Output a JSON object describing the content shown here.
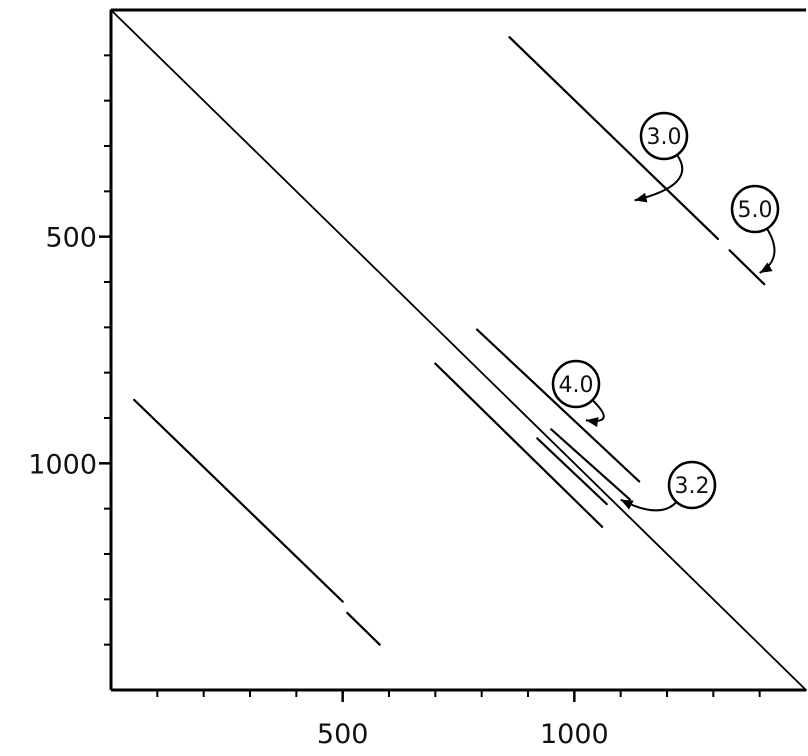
{
  "chart_data": {
    "type": "line",
    "title": "",
    "xlabel": "",
    "ylabel": "",
    "xlim": [
      0,
      1500
    ],
    "ylim": [
      0,
      1500
    ],
    "y_inverted": true,
    "grid": false,
    "x_ticks": [
      {
        "value": 500,
        "label": "500"
      },
      {
        "value": 1000,
        "label": "1000"
      }
    ],
    "y_ticks": [
      {
        "value": 500,
        "label": "500"
      },
      {
        "value": 1000,
        "label": "1000"
      }
    ],
    "x_minor_ticks": [
      100,
      200,
      300,
      400,
      600,
      700,
      800,
      900,
      1100,
      1200,
      1300,
      1400
    ],
    "y_minor_ticks": [
      100,
      200,
      300,
      400,
      600,
      700,
      800,
      900,
      1100,
      1200,
      1300,
      1400
    ],
    "series": [
      {
        "segments": [
          [
            [
              0,
              0
            ],
            [
              1500,
              1500
            ]
          ]
        ]
      },
      {
        "segments": [
          [
            [
              860,
              60
            ],
            [
              1310,
              505
            ]
          ],
          [
            [
              1335,
              530
            ],
            [
              1410,
              605
            ]
          ]
        ]
      },
      {
        "segments": [
          [
            [
              790,
              705
            ],
            [
              1140,
              1040
            ]
          ]
        ]
      },
      {
        "segments": [
          [
            [
              950,
              925
            ],
            [
              1120,
              1080
            ]
          ]
        ]
      },
      {
        "segments": [
          [
            [
              920,
              945
            ],
            [
              1070,
              1090
            ]
          ]
        ]
      },
      {
        "segments": [
          [
            [
              700,
              780
            ],
            [
              1060,
              1140
            ]
          ]
        ]
      },
      {
        "segments": [
          [
            [
              50,
              860
            ],
            [
              500,
              1305
            ]
          ],
          [
            [
              510,
              1330
            ],
            [
              580,
              1400
            ]
          ]
        ]
      }
    ],
    "annotations": [
      {
        "text": "3.0",
        "points_to": [
          1130,
          420
        ]
      },
      {
        "text": "5.0",
        "points_to": [
          1400,
          580
        ]
      },
      {
        "text": "4.0",
        "points_to": [
          1025,
          905
        ]
      },
      {
        "text": "3.2",
        "points_to": [
          1100,
          1080
        ]
      }
    ]
  }
}
